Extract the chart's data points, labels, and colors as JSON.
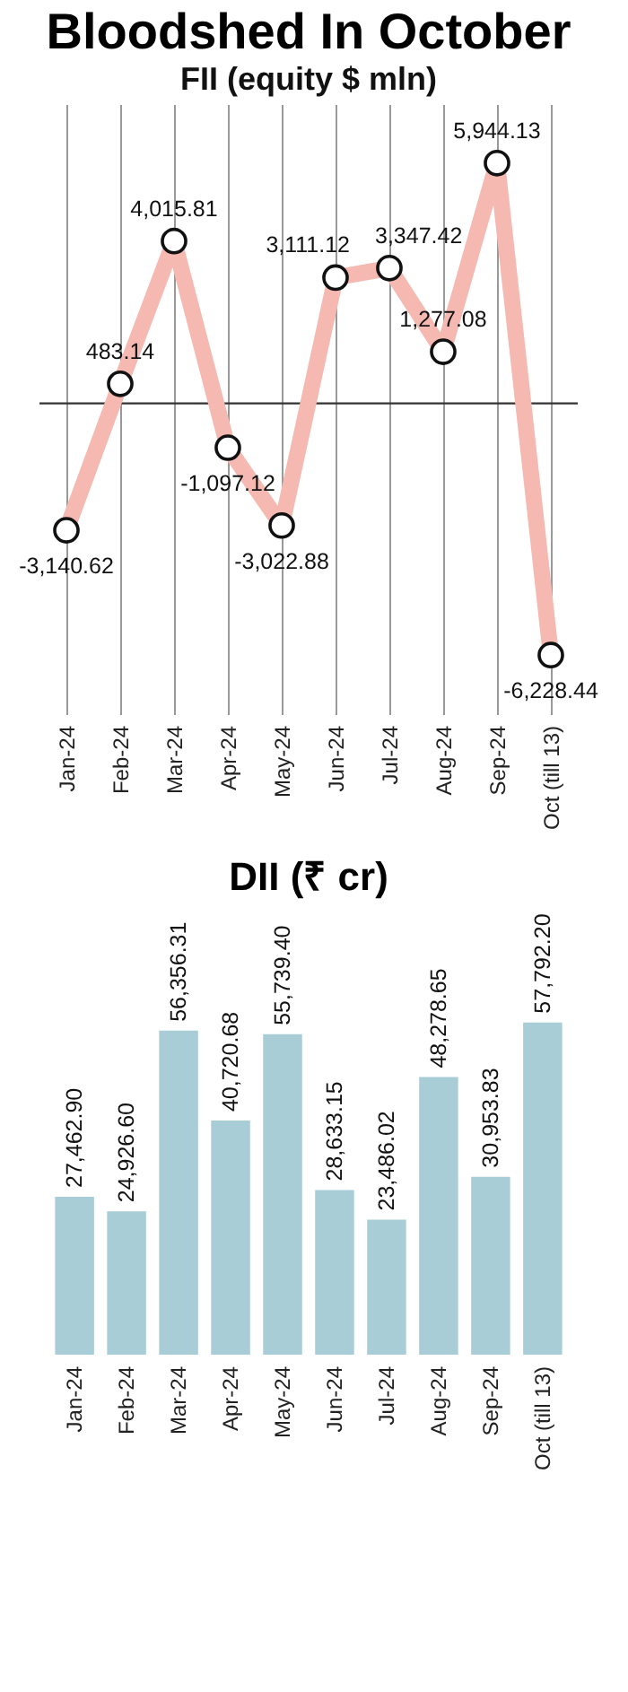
{
  "chart_data": [
    {
      "type": "line",
      "title": "Bloodshed In October",
      "subtitle": "FII (equity $ mln)",
      "categories": [
        "Jan-24",
        "Feb-24",
        "Mar-24",
        "Apr-24",
        "May-24",
        "Jun-24",
        "Jul-24",
        "Aug-24",
        "Sep-24",
        "Oct (till 13)"
      ],
      "series": [
        {
          "color": "#f5b9b2",
          "values": [
            -3140.62,
            483.14,
            4015.81,
            -1097.12,
            -3022.88,
            3111.12,
            3347.42,
            1277.08,
            5944.13,
            -6228.44
          ],
          "value_labels": [
            "-3,140.62",
            "483.14",
            "4,015.81",
            "-1,097.12",
            "-3,022.88",
            "3,111.12",
            "3,347.42",
            "1,277.08",
            "5,944.13",
            "-6,228.44"
          ]
        }
      ],
      "marker": "circle",
      "grid": "x",
      "tick_labels": "x"
    },
    {
      "type": "bar",
      "title": "DII (₹ cr)",
      "categories": [
        "Jan-24",
        "Feb-24",
        "Mar-24",
        "Apr-24",
        "May-24",
        "Jun-24",
        "Jul-24",
        "Aug-24",
        "Sep-24",
        "Oct (till 13)"
      ],
      "series": [
        {
          "color": "#a9cdd6",
          "values": [
            27462.9,
            24926.6,
            56356.31,
            40720.68,
            55739.4,
            28633.15,
            23486.02,
            48278.65,
            30953.83,
            57792.2
          ],
          "value_labels": [
            "27,462.90",
            "24,926.60",
            "56,356.31",
            "40,720.68",
            "55,739.40",
            "28,633.15",
            "23,486.02",
            "48,278.65",
            "30,953.83",
            "57,792.20"
          ]
        }
      ],
      "grid": false,
      "tick_labels": "x"
    }
  ]
}
